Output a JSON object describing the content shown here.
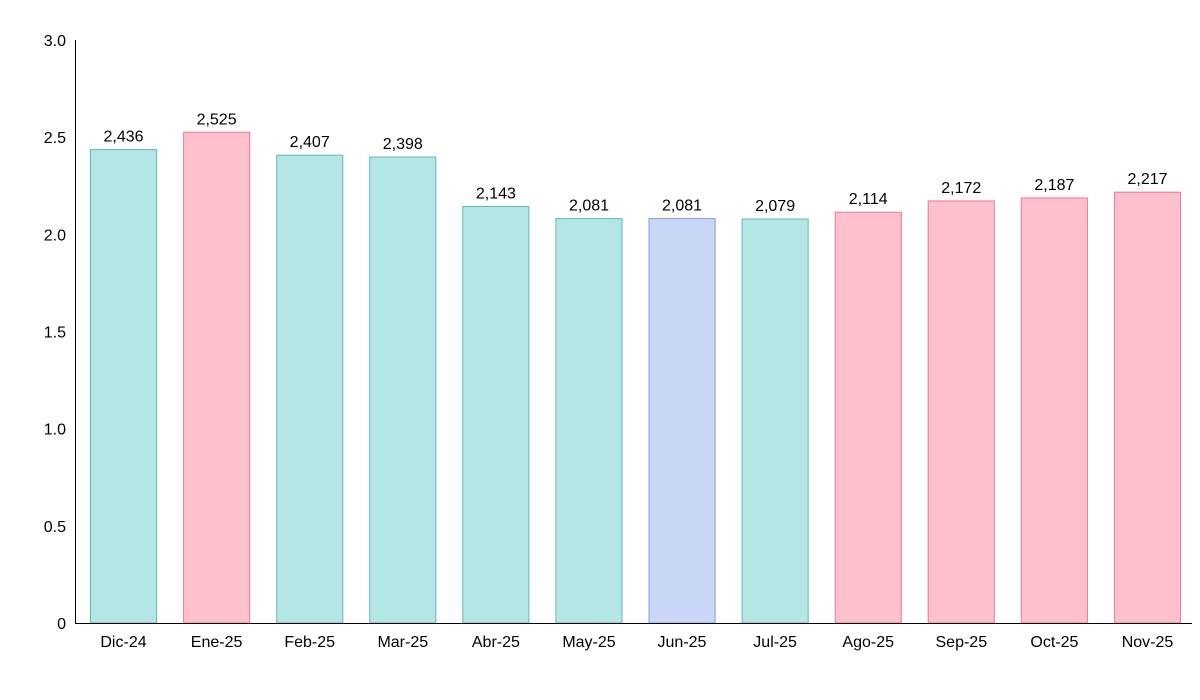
{
  "chart_data": {
    "type": "bar",
    "title": "",
    "xlabel": "",
    "ylabel": "",
    "ylim": [
      0,
      3.0
    ],
    "y_ticks": [
      {
        "value": 0,
        "label": "0"
      },
      {
        "value": 0.5,
        "label": "0.5"
      },
      {
        "value": 1.0,
        "label": "1.0"
      },
      {
        "value": 1.5,
        "label": "1.5"
      },
      {
        "value": 2.0,
        "label": "2.0"
      },
      {
        "value": 2.5,
        "label": "2.5"
      },
      {
        "value": 3.0,
        "label": "3.0"
      }
    ],
    "grid": false,
    "categories": [
      "Dic-24",
      "Ene-25",
      "Feb-25",
      "Mar-25",
      "Abr-25",
      "May-25",
      "Jun-25",
      "Jul-25",
      "Ago-25",
      "Sep-25",
      "Oct-25",
      "Nov-25"
    ],
    "values": [
      2.436,
      2.525,
      2.407,
      2.398,
      2.143,
      2.081,
      2.081,
      2.079,
      2.114,
      2.172,
      2.187,
      2.217
    ],
    "data_labels": [
      "2,436",
      "2,525",
      "2,407",
      "2,398",
      "2,143",
      "2,081",
      "2,081",
      "2,079",
      "2,114",
      "2,172",
      "2,187",
      "2,217"
    ],
    "bar_colors": [
      "teal",
      "pink",
      "teal",
      "teal",
      "teal",
      "teal",
      "blue",
      "teal",
      "pink",
      "pink",
      "pink",
      "pink"
    ]
  },
  "palette": {
    "teal": {
      "fill": "#b3e6e4",
      "stroke": "#5cbcb8"
    },
    "pink": {
      "fill": "#ffc0cd",
      "stroke": "#e87a94"
    },
    "blue": {
      "fill": "#c9d6f5",
      "stroke": "#7f9fd9"
    },
    "axis": "#000000"
  }
}
